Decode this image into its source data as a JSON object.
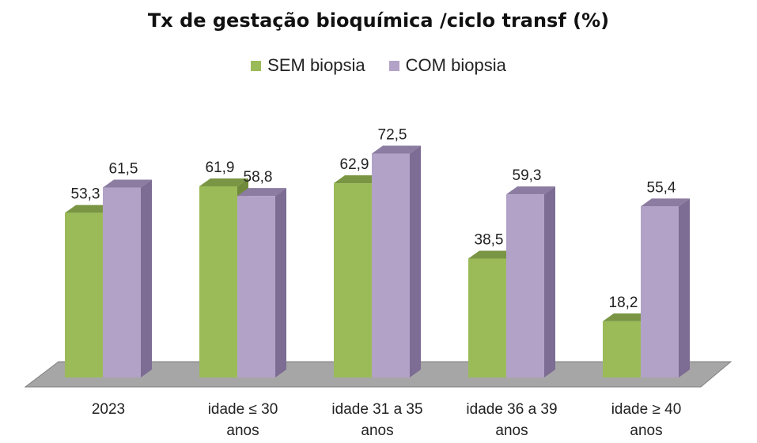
{
  "chart_data": {
    "type": "bar",
    "title": "Tx de gestação bioquímica /ciclo transf (%)",
    "categories": [
      "2023",
      "idade ≤ 30\nanos",
      "idade 31 a 35\nanos",
      "idade 36 a 39\nanos",
      "idade ≥ 40\nanos"
    ],
    "series": [
      {
        "name": "SEM biopsia",
        "values": [
          53.3,
          61.9,
          62.9,
          38.5,
          18.2
        ],
        "labels": [
          "53,3",
          "61,9",
          "62,9",
          "38,5",
          "18,2"
        ],
        "color": "#9bbb59"
      },
      {
        "name": "COM biopsia",
        "values": [
          61.5,
          58.8,
          72.5,
          59.3,
          55.4
        ],
        "labels": [
          "61,5",
          "58,8",
          "72,5",
          "59,3",
          "55,4"
        ],
        "color": "#b3a2c7"
      }
    ],
    "ylim": [
      0,
      80
    ],
    "legend_position": "top",
    "grid": false,
    "style": "3d-clustered-column"
  }
}
